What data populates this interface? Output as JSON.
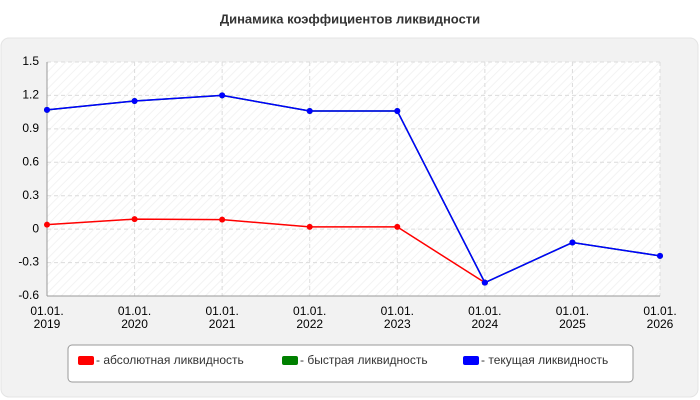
{
  "chart_data": {
    "type": "line",
    "title": "Динамика коэффициентов ликвидности",
    "categories": [
      "01.01. 2019",
      "01.01. 2020",
      "01.01. 2021",
      "01.01. 2022",
      "01.01. 2023",
      "01.01. 2024",
      "01.01. 2025",
      "01.01. 2026"
    ],
    "series": [
      {
        "name": "- абсолютная ликвидность",
        "color": "#ff0000",
        "values": [
          0.04,
          0.09,
          0.085,
          0.02,
          0.02,
          -0.48,
          null,
          null
        ]
      },
      {
        "name": "- быстрая ликвидность",
        "color": "#008000",
        "values": [
          1.07,
          1.15,
          1.2,
          1.06,
          1.06,
          -0.48,
          -0.12,
          -0.24
        ]
      },
      {
        "name": "- текущая ликвидность",
        "color": "#0000ff",
        "values": [
          1.07,
          1.15,
          1.2,
          1.06,
          1.06,
          -0.48,
          -0.12,
          -0.24
        ]
      }
    ],
    "ylim": [
      -0.6,
      1.5
    ],
    "yticks": [
      1.5,
      1.2,
      0.9,
      0.6,
      0.3,
      0,
      -0.3,
      -0.6
    ],
    "grid": true
  }
}
